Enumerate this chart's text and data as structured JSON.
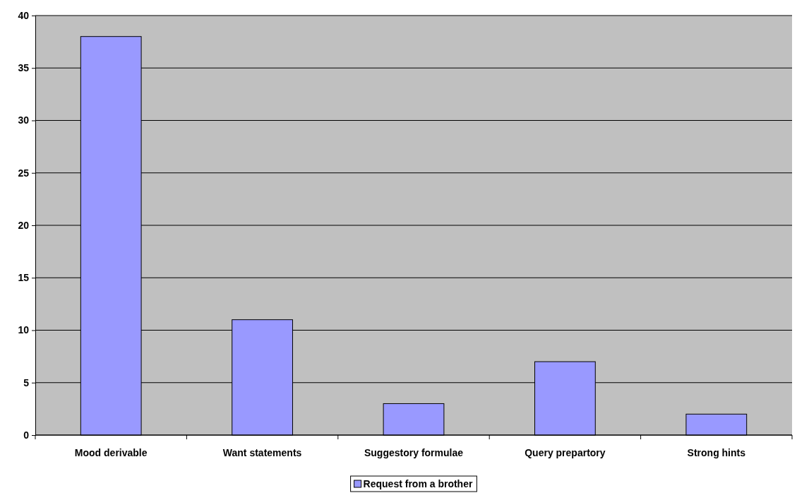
{
  "chart_data": {
    "type": "bar",
    "categories": [
      "Mood derivable",
      "Want statements",
      "Suggestory formulae",
      "Query prepartory",
      "Strong hints"
    ],
    "series": [
      {
        "name": "Request from a brother",
        "color": "#9999ff",
        "values": [
          38,
          11,
          3,
          7,
          2
        ]
      }
    ],
    "ylim": [
      0,
      40
    ],
    "yticks": [
      0,
      5,
      10,
      15,
      20,
      25,
      30,
      35,
      40
    ],
    "grid": "y",
    "legend": "bottom"
  }
}
